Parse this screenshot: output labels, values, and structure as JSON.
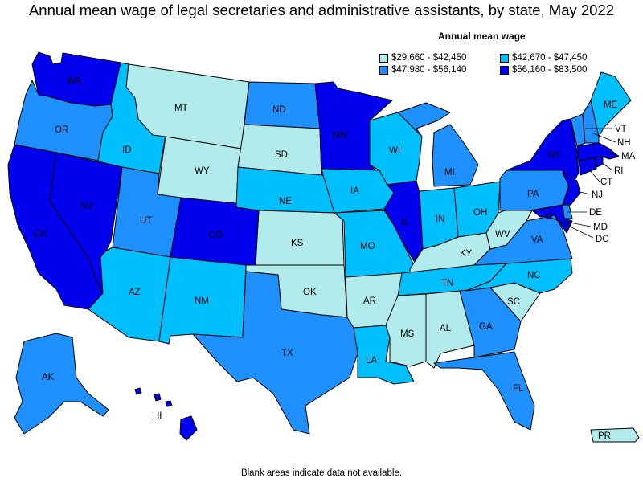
{
  "title": "Annual mean wage of legal secretaries and administrative assistants, by state, May 2022",
  "legend": {
    "title": "Annual mean wage",
    "items": [
      {
        "label": "$29,660 - $42,450",
        "color": "#b2ebeb"
      },
      {
        "label": "$42,670 - $47,450",
        "color": "#00bfff"
      },
      {
        "label": "$47,980 - $56,140",
        "color": "#1e90ff"
      },
      {
        "label": "$56,160 - $83,500",
        "color": "#0000ee"
      }
    ]
  },
  "note": "Blank areas indicate data not available.",
  "states": {
    "WA": 3,
    "OR": 2,
    "CA": 3,
    "NV": 3,
    "ID": 1,
    "MT": 0,
    "WY": 0,
    "UT": 2,
    "AZ": 1,
    "CO": 3,
    "NM": 1,
    "ND": 2,
    "SD": 0,
    "NE": 1,
    "KS": 0,
    "OK": 0,
    "TX": 2,
    "MN": 3,
    "IA": 1,
    "MO": 1,
    "AR": 0,
    "LA": 1,
    "WI": 1,
    "IL": 3,
    "MI": 2,
    "IN": 1,
    "OH": 1,
    "KY": 0,
    "TN": 1,
    "MS": 0,
    "AL": 0,
    "GA": 2,
    "FL": 2,
    "SC": 0,
    "NC": 1,
    "VA": 2,
    "WV": 0,
    "PA": 2,
    "NY": 3,
    "ME": 1,
    "VT": 2,
    "NH": 2,
    "MA": 3,
    "RI": 3,
    "CT": 3,
    "NJ": 3,
    "DE": 2,
    "MD": 3,
    "DC": 3,
    "AK": 2,
    "HI": 3,
    "PR": 0
  },
  "labels": {
    "WA": "WA",
    "OR": "OR",
    "CA": "CA",
    "NV": "NV",
    "ID": "ID",
    "MT": "MT",
    "WY": "WY",
    "UT": "UT",
    "AZ": "AZ",
    "CO": "CO",
    "NM": "NM",
    "ND": "ND",
    "SD": "SD",
    "NE": "NE",
    "KS": "KS",
    "OK": "OK",
    "TX": "TX",
    "MN": "MN",
    "IA": "IA",
    "MO": "MO",
    "AR": "AR",
    "LA": "LA",
    "WI": "WI",
    "IL": "IL",
    "MI": "MI",
    "IN": "IN",
    "OH": "OH",
    "KY": "KY",
    "TN": "TN",
    "MS": "MS",
    "AL": "AL",
    "GA": "GA",
    "FL": "FL",
    "SC": "SC",
    "NC": "NC",
    "VA": "VA",
    "WV": "WV",
    "PA": "PA",
    "NY": "NY",
    "ME": "ME",
    "VT": "VT",
    "NH": "NH",
    "MA": "MA",
    "RI": "RI",
    "CT": "CT",
    "NJ": "NJ",
    "DE": "DE",
    "MD": "MD",
    "DC": "DC",
    "AK": "AK",
    "HI": "HI",
    "PR": "PR"
  }
}
